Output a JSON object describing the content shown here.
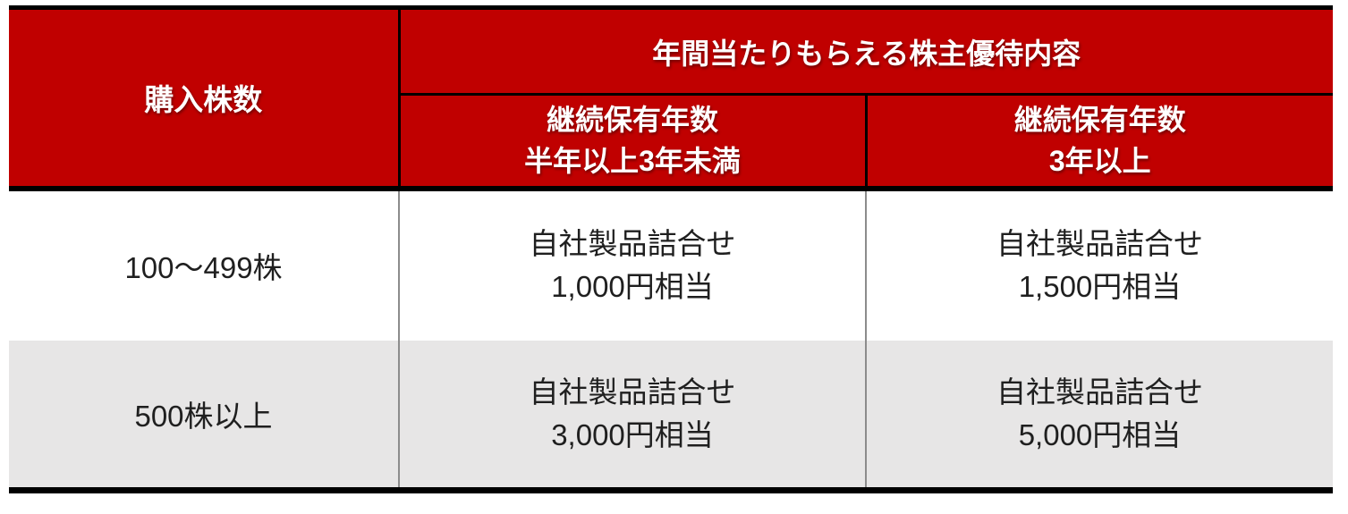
{
  "chart_data": {
    "type": "table",
    "title": "年間当たりもらえる株主優待内容",
    "columns": [
      "購入株数",
      "継続保有年数 半年以上3年未満",
      "継続保有年数 3年以上"
    ],
    "rows": [
      [
        "100〜499株",
        "自社製品詰合せ 1,000円相当",
        "自社製品詰合せ 1,500円相当"
      ],
      [
        "500株以上",
        "自社製品詰合せ 3,000円相当",
        "自社製品詰合せ 5,000円相当"
      ]
    ],
    "layout_hints": {
      "merged_title_spans_columns": [
        2,
        3
      ],
      "row_striping": [
        "white",
        "light-gray"
      ]
    }
  },
  "table": {
    "header": {
      "purchase_label": "購入株数",
      "benefit_title": "年間当たりもらえる株主優待内容",
      "sub_columns": [
        {
          "line1": "継続保有年数",
          "line2": "半年以上3年未満"
        },
        {
          "line1": "継続保有年数",
          "line2": "3年以上"
        }
      ]
    },
    "rows": [
      {
        "shares": "100〜499株",
        "mid_term": {
          "line1": "自社製品詰合せ",
          "line2": "1,000円相当"
        },
        "long_term": {
          "line1": "自社製品詰合せ",
          "line2": "1,500円相当"
        }
      },
      {
        "shares": "500株以上",
        "mid_term": {
          "line1": "自社製品詰合せ",
          "line2": "3,000円相当"
        },
        "long_term": {
          "line1": "自社製品詰合せ",
          "line2": "5,000円相当"
        }
      }
    ],
    "colors": {
      "header_bg": "#c00000",
      "header_text": "#ffffff",
      "alt_row_bg": "#e7e6e6",
      "row_bg": "#ffffff",
      "body_text": "#1f1f1f",
      "heavy_border": "#000000",
      "light_border": "#8c8c8c"
    }
  }
}
